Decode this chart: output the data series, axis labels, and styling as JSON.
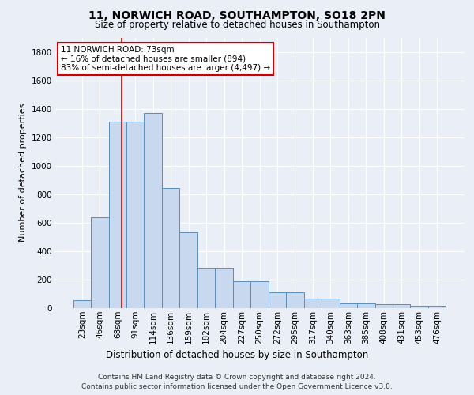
{
  "title1": "11, NORWICH ROAD, SOUTHAMPTON, SO18 2PN",
  "title2": "Size of property relative to detached houses in Southampton",
  "xlabel": "Distribution of detached houses by size in Southampton",
  "ylabel": "Number of detached properties",
  "categories": [
    "23sqm",
    "46sqm",
    "68sqm",
    "91sqm",
    "114sqm",
    "136sqm",
    "159sqm",
    "182sqm",
    "204sqm",
    "227sqm",
    "250sqm",
    "272sqm",
    "295sqm",
    "317sqm",
    "340sqm",
    "363sqm",
    "385sqm",
    "408sqm",
    "431sqm",
    "453sqm",
    "476sqm"
  ],
  "values": [
    55,
    640,
    1310,
    1310,
    1370,
    845,
    530,
    285,
    285,
    190,
    190,
    110,
    110,
    65,
    65,
    35,
    35,
    25,
    25,
    15,
    15
  ],
  "bar_color": "#c8d8ee",
  "bar_edge_color": "#5b8db8",
  "red_line_x": 2.22,
  "annotation_text": "11 NORWICH ROAD: 73sqm\n← 16% of detached houses are smaller (894)\n83% of semi-detached houses are larger (4,497) →",
  "annotation_box_color": "#ffffff",
  "annotation_box_edge": "#cc0000",
  "footnote1": "Contains HM Land Registry data © Crown copyright and database right 2024.",
  "footnote2": "Contains public sector information licensed under the Open Government Licence v3.0.",
  "bg_color": "#eaeff7",
  "plot_bg_color": "#eaeff7",
  "ylim": [
    0,
    1900
  ],
  "yticks": [
    0,
    200,
    400,
    600,
    800,
    1000,
    1200,
    1400,
    1600,
    1800
  ]
}
